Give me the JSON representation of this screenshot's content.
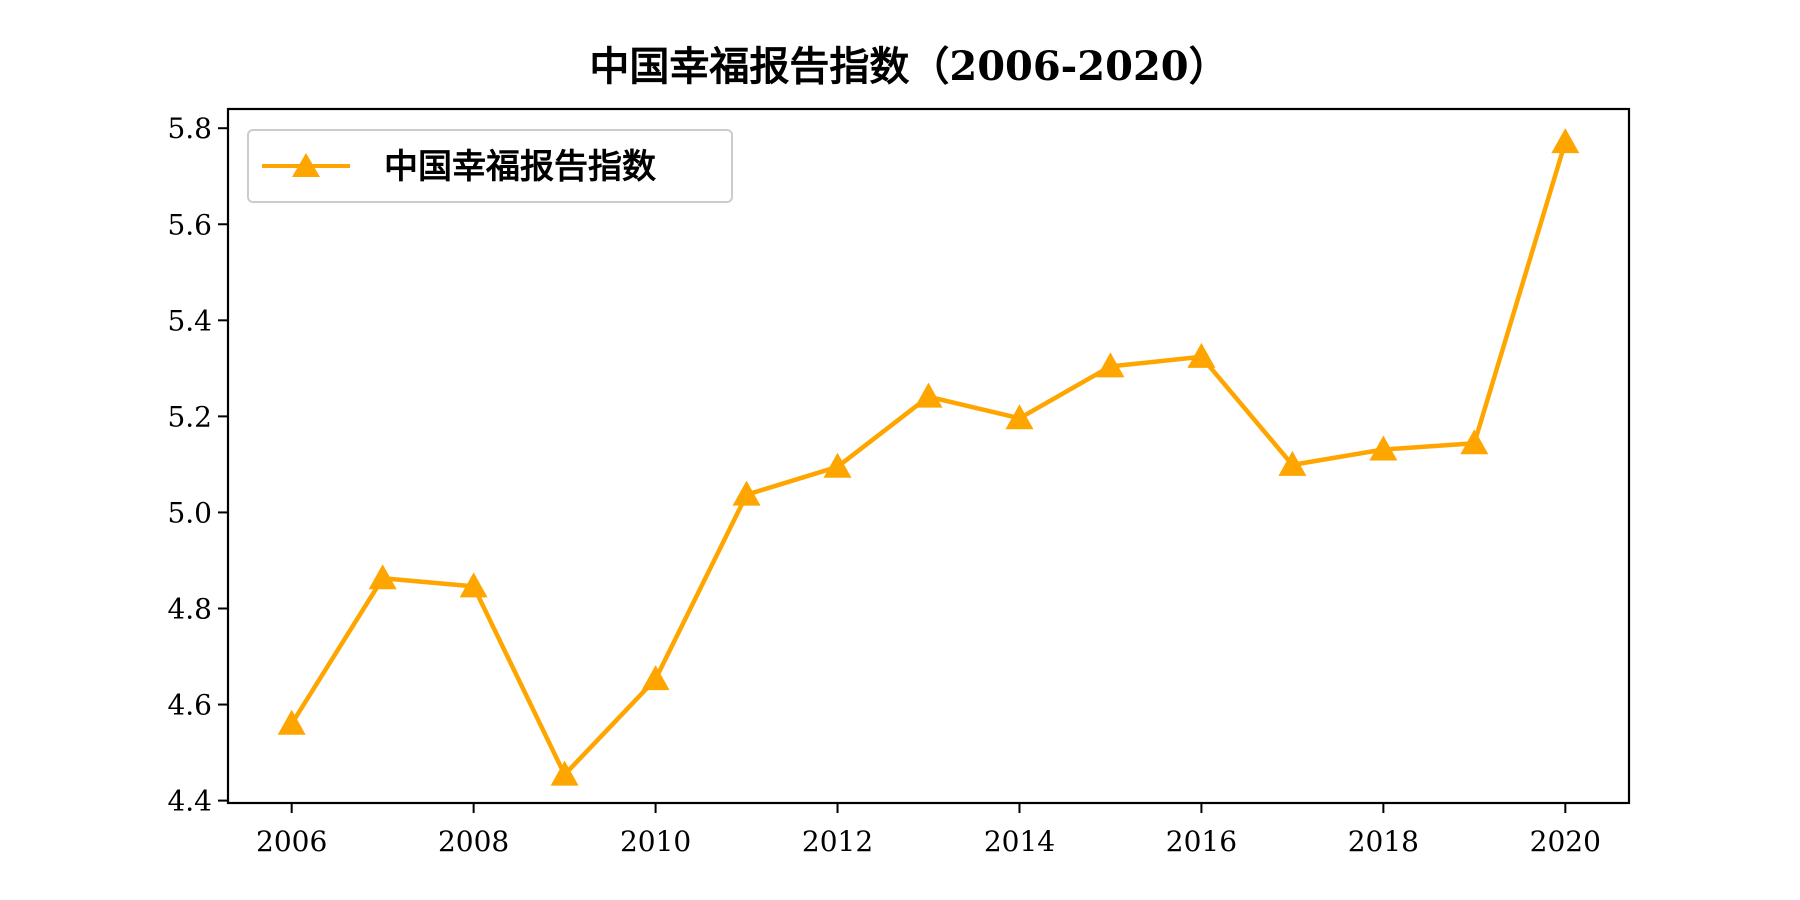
{
  "chart_data": {
    "type": "line",
    "title": "中国幸福报告指数（2006-2020）",
    "xlabel": "",
    "ylabel": "",
    "x": [
      2006,
      2007,
      2008,
      2009,
      2010,
      2011,
      2012,
      2013,
      2014,
      2015,
      2016,
      2017,
      2018,
      2019,
      2020
    ],
    "x_ticks": [
      "2006",
      "2008",
      "2010",
      "2012",
      "2014",
      "2016",
      "2018",
      "2020"
    ],
    "y_ticks": [
      "4.4",
      "4.6",
      "4.8",
      "5.0",
      "5.2",
      "5.4",
      "5.6",
      "5.8"
    ],
    "xlim": [
      2005.3,
      2020.7
    ],
    "ylim": [
      4.395,
      5.84
    ],
    "grid": false,
    "legend_position": "top-left",
    "series": [
      {
        "name": "中国幸福报告指数",
        "color": "#FFA500",
        "marker": "triangle",
        "values": [
          4.56,
          4.863,
          4.846,
          4.454,
          4.653,
          5.037,
          5.095,
          5.241,
          5.196,
          5.304,
          5.324,
          5.099,
          5.131,
          5.144,
          5.771
        ]
      }
    ]
  }
}
